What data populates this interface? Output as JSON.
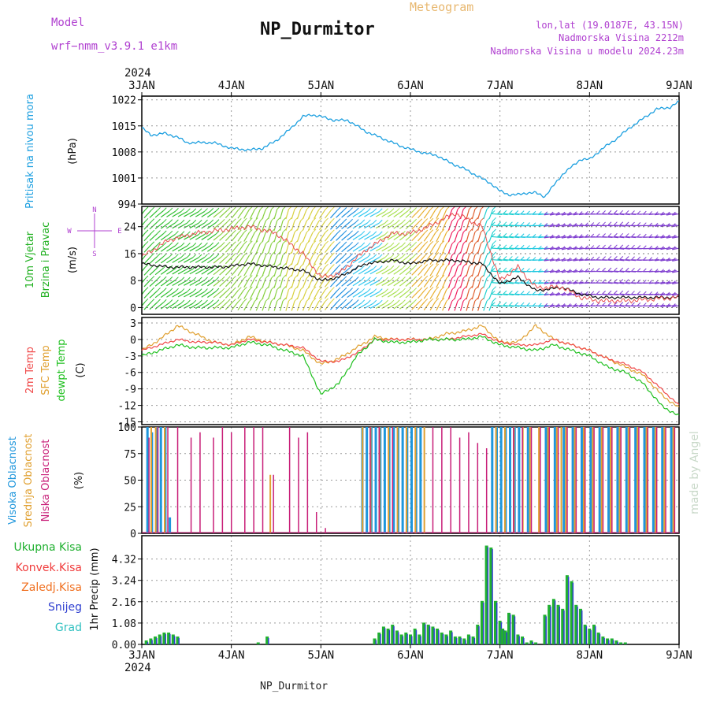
{
  "header": {
    "title": "NP_Durmitor",
    "subtitle": "Meteogram",
    "model_label": "Model",
    "model_value": "wrf−nmm_v3.9.1  e1km",
    "lonlat": "lon,lat (19.0187E, 43.15N)",
    "elevation": "Nadmorska Visina 2212m",
    "elevation_model": "Nadmorska Visina u modelu 2024.23m",
    "footer": "NP_Durmitor",
    "credit": "made by Angel"
  },
  "colors": {
    "pressure": "#1ea0e0",
    "temp2m": "#f04a4a",
    "sfc": "#e0a030",
    "dewpt": "#20c020",
    "cloud_high": "#1e96dc",
    "cloud_mid": "#e0a030",
    "cloud_low": "#c81e78",
    "precip_total": "#20b030",
    "precip_conv": "#f03c3c",
    "precip_frozen": "#f07020",
    "precip_snow": "#3040d0",
    "precip_hail": "#30c0c0",
    "wind_label": "#20b020",
    "purple": "#b040d0",
    "subtitle": "#e8b870"
  },
  "chart_data": [
    {
      "type": "line",
      "name": "pressure",
      "ylabel": "Pritisak na nivou mora",
      "unit": "(hPa)",
      "yticks": [
        994,
        1001,
        1008,
        1015,
        1022
      ],
      "ylim": [
        994,
        1023
      ],
      "x_days": [
        0,
        0.1,
        0.25,
        0.4,
        0.5,
        0.65,
        0.8,
        1.0,
        1.2,
        1.35,
        1.5,
        1.65,
        1.8,
        1.9,
        2.0,
        2.15,
        2.3,
        2.5,
        2.7,
        2.9,
        3.1,
        3.3,
        3.45,
        3.6,
        3.75,
        3.9,
        4.0,
        4.1,
        4.2,
        4.3,
        4.4,
        4.5,
        4.6,
        4.7,
        4.8,
        4.9,
        5.0,
        5.15,
        5.3,
        5.45,
        5.6,
        5.75,
        5.9,
        6.0
      ],
      "values": [
        1014.5,
        1012.5,
        1013,
        1012,
        1010.5,
        1010.5,
        1010.5,
        1009,
        1008.5,
        1009,
        1011,
        1014,
        1017.5,
        1018,
        1017.5,
        1016.5,
        1016.5,
        1013.5,
        1011.5,
        1009.5,
        1008,
        1007,
        1005,
        1003.5,
        1001.5,
        999.5,
        997.5,
        996.5,
        996.5,
        997,
        997,
        996,
        999,
        1002,
        1004,
        1006,
        1006,
        1009,
        1011.5,
        1014.5,
        1017,
        1019.5,
        1020,
        1021.5
      ]
    },
    {
      "type": "wind",
      "ylabel_1": "10m Vjetar",
      "ylabel_2": "Brzina i Pravac",
      "unit": "(m/s)",
      "compass_n": "N",
      "compass_s": "S",
      "compass_e": "E",
      "compass_w": "W",
      "yticks": [
        0,
        8,
        16,
        24
      ],
      "ylim": [
        -2,
        30
      ],
      "x_days": [
        0,
        0.3,
        0.6,
        0.9,
        1.2,
        1.5,
        1.8,
        2.0,
        2.2,
        2.5,
        2.8,
        3.0,
        3.2,
        3.5,
        3.8,
        4.0,
        4.2,
        4.4,
        4.7,
        4.9,
        5.1,
        5.4,
        5.7,
        6.0
      ],
      "speed": [
        13,
        12,
        12,
        12,
        13,
        12,
        11,
        8,
        9,
        13,
        14,
        13,
        14,
        14,
        13,
        7,
        9,
        5,
        6,
        4,
        3,
        3,
        3,
        3
      ],
      "gust": [
        15,
        20,
        22,
        23,
        24,
        22,
        16,
        9,
        10,
        17,
        22,
        22,
        24,
        28,
        24,
        8,
        12,
        6,
        6,
        3,
        2,
        2,
        2.5,
        3
      ]
    },
    {
      "type": "line",
      "name": "temperature",
      "ylabel_1": "2m Temp",
      "ylabel_2": "SFC Temp",
      "ylabel_3": "dewpt Temp",
      "unit": "(C)",
      "yticks": [
        -15,
        -12,
        -9,
        -6,
        -3,
        0,
        3
      ],
      "ylim": [
        -15.5,
        4
      ],
      "x_days": [
        0,
        0.2,
        0.4,
        0.6,
        0.8,
        1.0,
        1.2,
        1.4,
        1.6,
        1.8,
        2.0,
        2.2,
        2.4,
        2.6,
        2.8,
        3.0,
        3.2,
        3.4,
        3.6,
        3.8,
        4.0,
        4.2,
        4.4,
        4.6,
        4.8,
        5.0,
        5.2,
        5.4,
        5.6,
        5.8,
        6.0
      ],
      "temp2m": [
        -2,
        -1,
        0,
        -0.5,
        -0.5,
        -1,
        0,
        -0.5,
        -1,
        -1.5,
        -4,
        -4,
        -2.5,
        0,
        0,
        0,
        0,
        0,
        0.5,
        1,
        -0.5,
        -1,
        -1,
        0,
        -1,
        -2,
        -3.5,
        -4.5,
        -6,
        -9,
        -12
      ],
      "sfc": [
        -2,
        0,
        2.5,
        1,
        -0.5,
        -1,
        0.5,
        -0.5,
        -1,
        -2,
        -4.5,
        -3.5,
        -1.5,
        0.5,
        0,
        0,
        0,
        1,
        1.5,
        2.5,
        -0.5,
        -0.5,
        2.5,
        0,
        -1,
        -2,
        -3.5,
        -5,
        -6.5,
        -10,
        -12.5
      ],
      "dewpt": [
        -3,
        -2,
        -1,
        -1.5,
        -1.5,
        -1.5,
        -0.5,
        -1,
        -2,
        -3,
        -10,
        -8,
        -3,
        0,
        -0.5,
        -0.5,
        0,
        0,
        0,
        0.5,
        -1,
        -1.5,
        -2,
        -1,
        -2,
        -3,
        -5,
        -6,
        -8,
        -12,
        -14
      ]
    },
    {
      "type": "bar",
      "name": "cloud",
      "ylabel_1": "Visoka Oblacnost",
      "ylabel_2": "Srednja Oblacnost",
      "ylabel_3": "Niska Oblacnost",
      "unit": "(%)",
      "yticks": [
        0,
        25,
        50,
        75,
        100
      ],
      "ylim": [
        0,
        100
      ],
      "high_x": [
        0.05,
        0.1,
        0.15,
        0.2,
        0.25,
        0.3,
        2.45,
        2.5,
        2.55,
        2.6,
        2.65,
        2.7,
        2.75,
        2.8,
        2.85,
        2.9,
        2.95,
        3.0,
        3.05,
        3.1,
        3.9,
        3.95,
        4.0,
        4.05,
        4.1,
        4.15,
        4.2,
        4.3,
        4.5,
        4.6,
        4.7,
        4.8,
        4.9,
        5.0,
        5.1,
        5.2,
        5.3,
        5.4,
        5.5,
        5.6,
        5.7,
        5.8,
        5.9
      ],
      "high_v": [
        100,
        95,
        100,
        100,
        100,
        15,
        100,
        100,
        100,
        100,
        100,
        100,
        100,
        100,
        100,
        100,
        100,
        100,
        100,
        100,
        100,
        100,
        100,
        100,
        100,
        100,
        100,
        100,
        100,
        100,
        100,
        100,
        100,
        100,
        100,
        100,
        100,
        100,
        100,
        100,
        100,
        100,
        100
      ],
      "mid_x": [
        0.07,
        0.12,
        0.22,
        1.4,
        2.43,
        2.52,
        2.62,
        2.72,
        2.82,
        2.92,
        3.02,
        3.12,
        3.92,
        4.02,
        4.12,
        4.22,
        4.3,
        4.4,
        4.5,
        4.6,
        4.65,
        4.7,
        4.8,
        4.9,
        5.0,
        5.1,
        5.2,
        5.3,
        5.4,
        5.5,
        5.6,
        5.7,
        5.8,
        5.9
      ],
      "mid_v": [
        100,
        100,
        100,
        55,
        100,
        100,
        100,
        100,
        100,
        100,
        100,
        100,
        100,
        100,
        100,
        100,
        100,
        100,
        100,
        100,
        100,
        100,
        100,
        100,
        100,
        100,
        100,
        100,
        100,
        100,
        100,
        100,
        100,
        100
      ],
      "low_x": [
        0.03,
        0.13,
        0.24,
        0.35,
        0.5,
        0.6,
        0.75,
        0.85,
        0.95,
        1.1,
        1.2,
        1.3,
        1.42,
        1.6,
        1.7,
        1.8,
        1.9,
        2.0,
        2.5,
        2.6,
        2.75,
        3.2,
        3.3,
        3.4,
        3.5,
        3.6,
        3.7,
        3.8,
        4.1,
        4.2,
        4.3,
        4.4,
        4.5,
        4.6,
        4.7,
        4.8,
        4.9,
        5.0,
        5.1,
        5.2,
        5.3,
        5.4,
        5.5,
        5.6,
        5.7,
        5.8,
        5.9
      ],
      "low_v": [
        90,
        100,
        100,
        100,
        90,
        95,
        90,
        100,
        95,
        100,
        100,
        100,
        55,
        100,
        90,
        95,
        20,
        5,
        100,
        100,
        100,
        100,
        100,
        100,
        90,
        95,
        85,
        80,
        100,
        100,
        100,
        100,
        100,
        100,
        100,
        100,
        100,
        100,
        100,
        100,
        100,
        100,
        100,
        100,
        100,
        100,
        100
      ]
    },
    {
      "type": "bar",
      "name": "precipitation",
      "ylabel_1": "Ukupna Kisa",
      "ylabel_2": "Konvek.Kisa",
      "ylabel_3": "Zaledj.Kisa",
      "ylabel_4": "Snijeg",
      "ylabel_5": "Grad",
      "unit": "1hr Precip (mm)",
      "yticks": [
        0,
        1.08,
        2.16,
        3.24,
        4.32
      ],
      "ylim": [
        0,
        5.5
      ],
      "x_days": [
        0.05,
        0.1,
        0.15,
        0.2,
        0.25,
        0.3,
        0.35,
        0.4,
        1.3,
        1.4,
        2.6,
        2.65,
        2.7,
        2.75,
        2.8,
        2.85,
        2.9,
        2.95,
        3.0,
        3.05,
        3.1,
        3.15,
        3.2,
        3.25,
        3.3,
        3.35,
        3.4,
        3.45,
        3.5,
        3.55,
        3.6,
        3.65,
        3.7,
        3.75,
        3.8,
        3.85,
        3.9,
        3.95,
        4.0,
        4.03,
        4.06,
        4.1,
        4.15,
        4.2,
        4.25,
        4.3,
        4.35,
        4.4,
        4.5,
        4.55,
        4.6,
        4.65,
        4.7,
        4.75,
        4.8,
        4.85,
        4.9,
        4.95,
        5.0,
        5.05,
        5.1,
        5.15,
        5.2,
        5.25,
        5.3,
        5.35,
        5.4
      ],
      "values": [
        0.2,
        0.3,
        0.4,
        0.5,
        0.6,
        0.6,
        0.5,
        0.4,
        0.1,
        0.4,
        0.3,
        0.6,
        0.9,
        0.8,
        1.0,
        0.7,
        0.5,
        0.6,
        0.5,
        0.8,
        0.5,
        1.1,
        1.0,
        0.9,
        0.8,
        0.6,
        0.5,
        0.7,
        0.4,
        0.4,
        0.3,
        0.5,
        0.4,
        1.0,
        2.2,
        5.0,
        4.9,
        2.2,
        1.2,
        0.8,
        0.7,
        1.6,
        1.5,
        0.5,
        0.4,
        0.1,
        0.2,
        0.1,
        1.5,
        2.0,
        2.3,
        2.0,
        1.8,
        3.5,
        3.2,
        2.0,
        1.8,
        1.0,
        0.8,
        1.0,
        0.6,
        0.4,
        0.3,
        0.3,
        0.2,
        0.1,
        0.1
      ]
    }
  ],
  "xaxis": {
    "year": "2024",
    "labels": [
      "3JAN",
      "4JAN",
      "5JAN",
      "6JAN",
      "7JAN",
      "8JAN",
      "9JAN"
    ]
  }
}
